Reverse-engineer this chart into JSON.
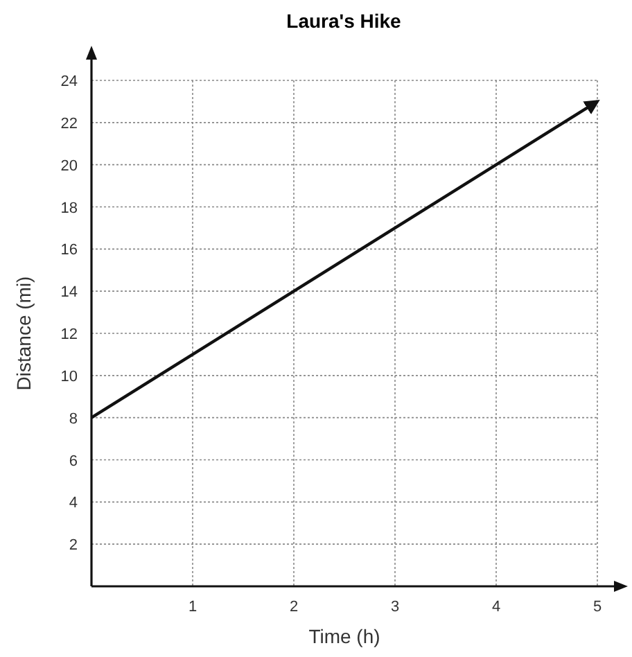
{
  "chart_data": {
    "type": "line",
    "title": "Laura's Hike",
    "xlabel": "Time (h)",
    "ylabel": "Distance (mi)",
    "x": [
      0,
      5
    ],
    "series": [
      {
        "color": "#111111",
        "values": [
          8,
          23
        ]
      }
    ],
    "xlim": [
      0,
      5
    ],
    "ylim": [
      0,
      24
    ],
    "xticks": [
      1,
      2,
      3,
      4,
      5
    ],
    "yticks": [
      2,
      4,
      6,
      8,
      10,
      12,
      14,
      16,
      18,
      20,
      22,
      24
    ],
    "grid": true,
    "marker": "none",
    "line_style": "solid"
  }
}
